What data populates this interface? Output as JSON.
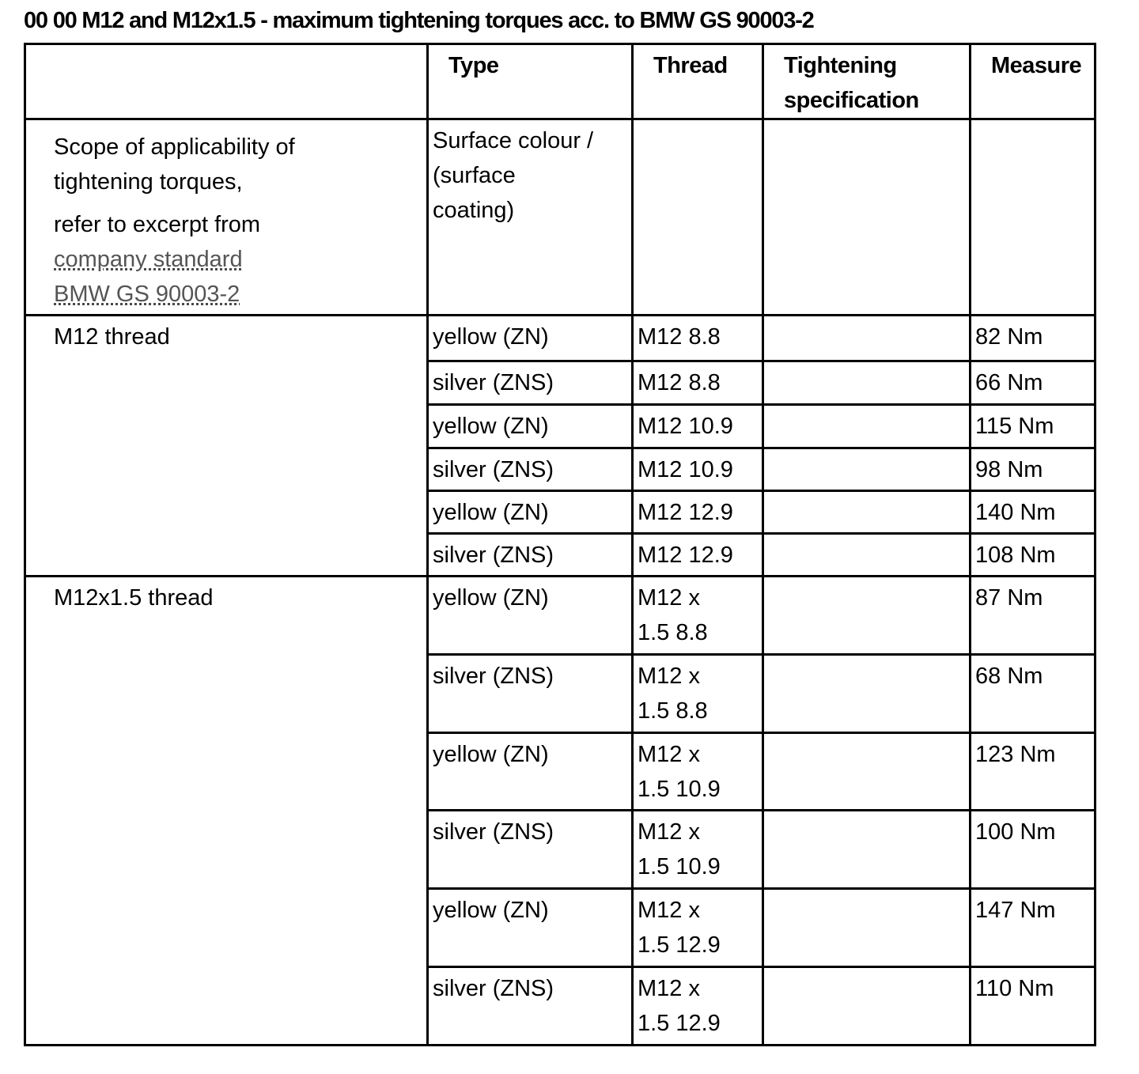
{
  "title": "00 00 M12 and M12x1.5 - maximum tightening torques acc. to BMW GS 90003-2",
  "headers": [
    "",
    "Type",
    "Thread",
    "Tightening specification",
    "Measure"
  ],
  "header_lines": {
    "tightening": [
      "Tightening",
      "specification"
    ]
  },
  "scope": {
    "line1": "Scope of applicability of",
    "line2": "tightening torques,",
    "line3": "refer to excerpt from",
    "link_line1": "company standard",
    "link_line2": "BMW GS 90003-2",
    "type_lines": [
      "Surface colour /",
      "(surface",
      "coating)"
    ]
  },
  "groups": [
    {
      "label": "M12 thread",
      "rows": [
        {
          "type": "yellow (ZN)",
          "thread": [
            "M12 8.8"
          ],
          "spec": "",
          "measure": "82 Nm"
        },
        {
          "type": "silver (ZNS)",
          "thread": [
            "M12 8.8"
          ],
          "spec": "",
          "measure": "66 Nm"
        },
        {
          "type": "yellow (ZN)",
          "thread": [
            "M12 10.9"
          ],
          "spec": "",
          "measure": "115 Nm"
        },
        {
          "type": "silver (ZNS)",
          "thread": [
            "M12 10.9"
          ],
          "spec": "",
          "measure": "98 Nm"
        },
        {
          "type": "yellow (ZN)",
          "thread": [
            "M12 12.9"
          ],
          "spec": "",
          "measure": "140 Nm"
        },
        {
          "type": "silver (ZNS)",
          "thread": [
            "M12 12.9"
          ],
          "spec": "",
          "measure": "108 Nm"
        }
      ]
    },
    {
      "label": "M12x1.5 thread",
      "rows": [
        {
          "type": "yellow (ZN)",
          "thread": [
            "M12 x",
            "1.5 8.8"
          ],
          "spec": "",
          "measure": "87 Nm"
        },
        {
          "type": "silver (ZNS)",
          "thread": [
            "M12 x",
            "1.5 8.8"
          ],
          "spec": "",
          "measure": "68 Nm"
        },
        {
          "type": "yellow (ZN)",
          "thread": [
            "M12 x",
            "1.5 10.9"
          ],
          "spec": "",
          "measure": "123 Nm"
        },
        {
          "type": "silver (ZNS)",
          "thread": [
            "M12 x",
            "1.5 10.9"
          ],
          "spec": "",
          "measure": "100 Nm"
        },
        {
          "type": "yellow (ZN)",
          "thread": [
            "M12 x",
            "1.5 12.9"
          ],
          "spec": "",
          "measure": "147 Nm"
        },
        {
          "type": "silver (ZNS)",
          "thread": [
            "M12 x",
            "1.5 12.9"
          ],
          "spec": "",
          "measure": "110 Nm"
        }
      ]
    }
  ]
}
